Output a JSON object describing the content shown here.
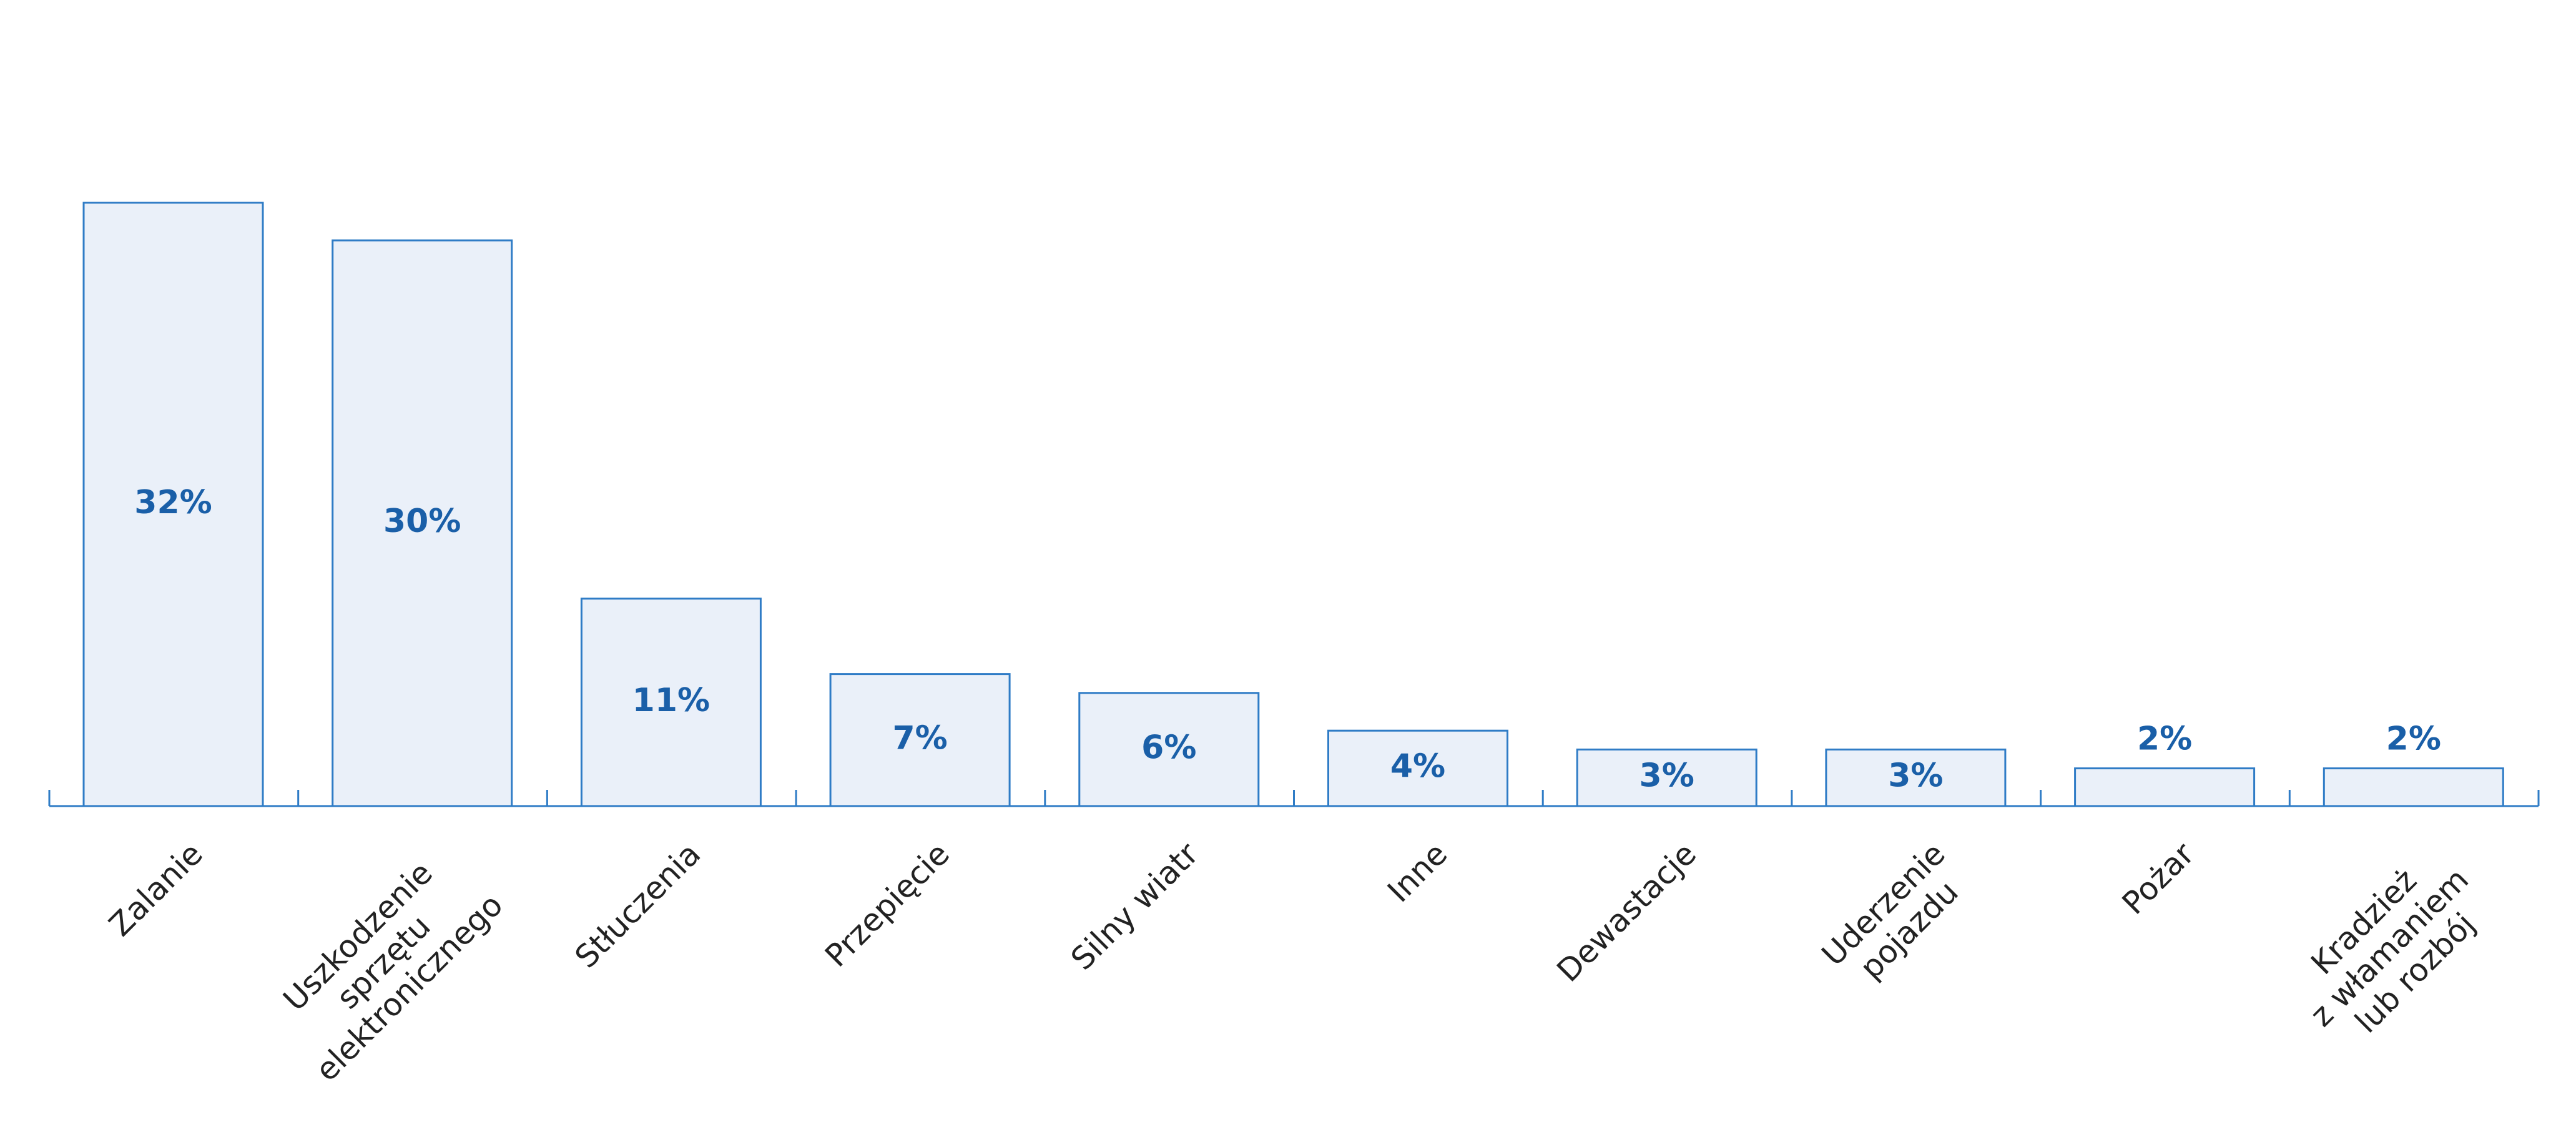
{
  "chart_data": {
    "type": "bar",
    "categories": [
      [
        "Zalanie"
      ],
      [
        "Uszkodzenie",
        "sprzętu",
        "elektronicznego"
      ],
      [
        "Stłuczenia"
      ],
      [
        "Przepięcie"
      ],
      [
        "Silny wiatr"
      ],
      [
        "Inne"
      ],
      [
        "Dewastacje"
      ],
      [
        "Uderzenie",
        "pojazdu"
      ],
      [
        "Pożar"
      ],
      [
        "Kradzież",
        "z włamaniem",
        "lub rozbój"
      ]
    ],
    "values": [
      32,
      30,
      11,
      7,
      6,
      4,
      3,
      3,
      2,
      2
    ],
    "value_labels": [
      "32%",
      "30%",
      "11%",
      "7%",
      "6%",
      "4%",
      "3%",
      "3%",
      "2%",
      "2%"
    ],
    "color": "#eaf0f9",
    "edge_color": "#2f7cc6",
    "label_color": "#1a5fa8"
  }
}
